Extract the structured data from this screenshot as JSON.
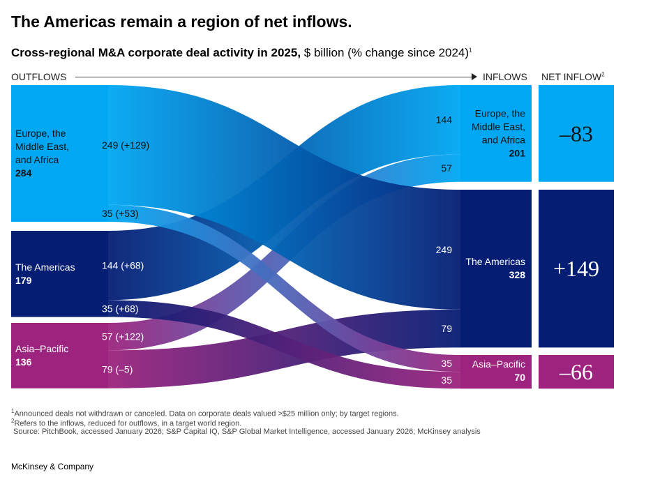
{
  "title": "The Americas remain a region of net inflows.",
  "subtitle_bold": "Cross-regional M&A corporate deal activity in 2025,",
  "subtitle_rest": " $ billion (% change since 2024)",
  "subtitle_sup": "1",
  "header": {
    "outflows": "OUTFLOWS",
    "inflows": "INFLOWS",
    "net_inflow": "NET INFLOW",
    "net_sup": "2"
  },
  "colors": {
    "emea": "#00a8f3",
    "americas": "#061d74",
    "apac": "#9c247e"
  },
  "chart_data": {
    "type": "sankey",
    "unit": "$ billion",
    "sources": [
      {
        "id": "emea",
        "label": "Europe, the Middle East, and Africa",
        "lines": [
          "Europe, the",
          "Middle East,",
          "and Africa"
        ],
        "value": 284
      },
      {
        "id": "americas",
        "label": "The Americas",
        "lines": [
          "The Americas"
        ],
        "value": 179
      },
      {
        "id": "apac",
        "label": "Asia–Pacific",
        "lines": [
          "Asia–Pacific"
        ],
        "value": 136
      }
    ],
    "targets": [
      {
        "id": "emea",
        "lines": [
          "Europe, the",
          "Middle East,",
          "and Africa"
        ],
        "value": 201,
        "net": "–83"
      },
      {
        "id": "americas",
        "lines": [
          "The Americas"
        ],
        "value": 328,
        "net": "+149"
      },
      {
        "id": "apac",
        "lines": [
          "Asia–Pacific"
        ],
        "value": 70,
        "net": "–66"
      }
    ],
    "flows": [
      {
        "source": "emea",
        "target": "americas",
        "value": 249,
        "change": "+129",
        "label": "249 (+129)"
      },
      {
        "source": "emea",
        "target": "apac",
        "value": 35,
        "change": "+53",
        "label": "35 (+53)"
      },
      {
        "source": "americas",
        "target": "emea",
        "value": 144,
        "change": "+68",
        "label": "144 (+68)"
      },
      {
        "source": "americas",
        "target": "apac",
        "value": 35,
        "change": "+68",
        "label": "35 (+68)"
      },
      {
        "source": "apac",
        "target": "emea",
        "value": 57,
        "change": "+122",
        "label": "57 (+122)"
      },
      {
        "source": "apac",
        "target": "americas",
        "value": 79,
        "change": "–5",
        "label": "79 (–5)"
      }
    ],
    "target_order": {
      "emea": [
        "americas",
        "apac"
      ],
      "americas": [
        "emea",
        "apac"
      ],
      "apac": [
        "emea",
        "americas"
      ]
    }
  },
  "footnotes": [
    "Announced deals not withdrawn or canceled. Data on corporate deals valued >$25 million only; by target regions.",
    "Refers to the inflows, reduced for outflows, in a target world region.",
    " Source: PitchBook, accessed January 2026; S&P Capital IQ, S&P Global Market Intelligence, accessed January 2026; McKinsey analysis"
  ],
  "footnote_marks": [
    "1",
    "2"
  ],
  "brand": "McKinsey & Company"
}
